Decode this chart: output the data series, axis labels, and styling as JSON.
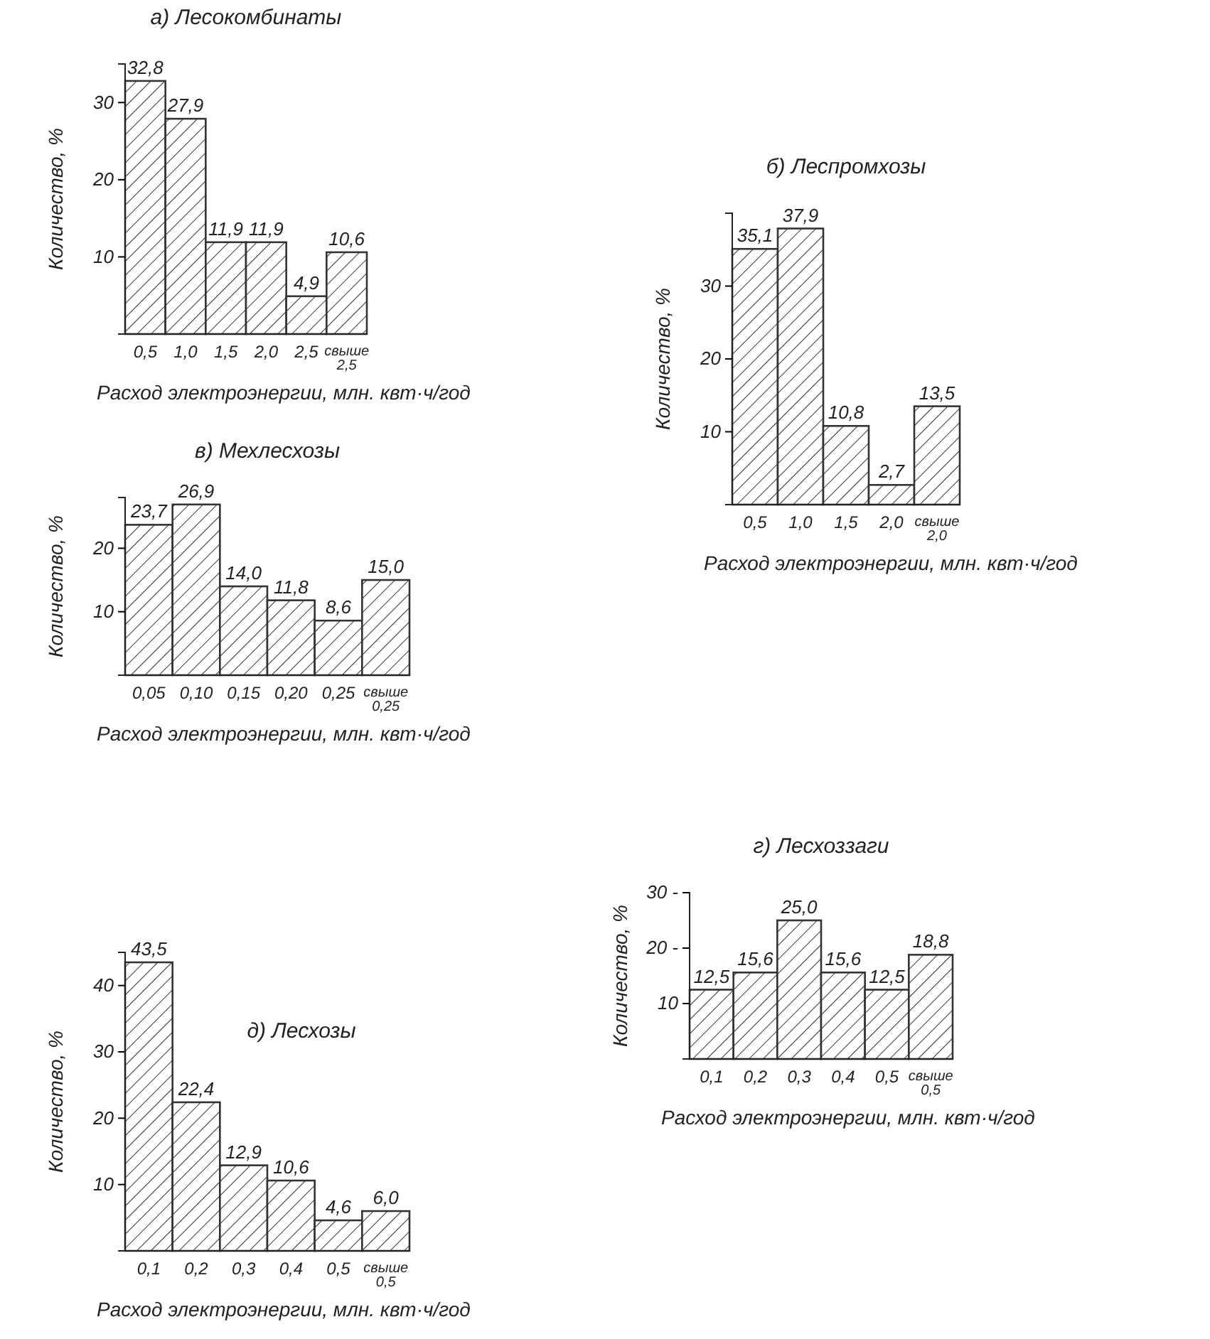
{
  "chart_data": [
    {
      "type": "bar",
      "title": "а) Лесокомбинаты",
      "xlabel": "Расход электроэнергии, млн. квт·ч/год",
      "ylabel": "Количество, %",
      "categories": [
        "0,5",
        "1,0",
        "1,5",
        "2,0",
        "2,5",
        "свыше 2,5"
      ],
      "values": [
        32.8,
        27.9,
        11.9,
        11.9,
        4.9,
        10.6
      ],
      "color": "#333333",
      "value_labels": [
        "32,8",
        "27,9",
        "11,9",
        "11,9",
        "4,9",
        "10,6"
      ],
      "ylim": [
        0,
        35
      ],
      "yticks": [
        10,
        20,
        30
      ]
    },
    {
      "type": "bar",
      "title": "б) Леспромхозы",
      "xlabel": "Расход электроэнергии, млн. квт·ч/год",
      "ylabel": "Количество, %",
      "categories": [
        "0,5",
        "1,0",
        "1,5",
        "2,0",
        "свыше 2,0"
      ],
      "values": [
        35.1,
        37.9,
        10.8,
        2.7,
        13.5
      ],
      "color": "#333333",
      "value_labels": [
        "35,1",
        "37,9",
        "10,8",
        "2,7",
        "13,5"
      ],
      "ylim": [
        0,
        40
      ],
      "yticks": [
        10,
        20,
        30
      ]
    },
    {
      "type": "bar",
      "title": "в) Мехлесхозы",
      "xlabel": "Расход электроэнергии, млн. квт·ч/год",
      "ylabel": "Количество, %",
      "categories": [
        "0,05",
        "0,10",
        "0,15",
        "0,20",
        "0,25",
        "свыше 0,25"
      ],
      "values": [
        23.7,
        26.9,
        14.0,
        11.8,
        8.6,
        15.0
      ],
      "color": "#333333",
      "value_labels": [
        "23,7",
        "26,9",
        "14,0",
        "11,8",
        "8,6",
        "15,0"
      ],
      "ylim": [
        0,
        28
      ],
      "yticks": [
        10,
        20
      ]
    },
    {
      "type": "bar",
      "title": "г) Лесхоззаги",
      "xlabel": "Расход электроэнергии, млн. квт·ч/год",
      "ylabel": "Количество, %",
      "categories": [
        "0,1",
        "0,2",
        "0,3",
        "0,4",
        "0,5",
        "свыше 0,5"
      ],
      "values": [
        12.5,
        15.6,
        25.0,
        15.6,
        12.5,
        18.8
      ],
      "color": "#333333",
      "value_labels": [
        "12,5",
        "15,6",
        "25,0",
        "15,6",
        "12,5",
        "18,8"
      ],
      "ylim": [
        0,
        30
      ],
      "yticks": [
        10,
        {
          "value": 20,
          "label": "20 -"
        },
        {
          "value": 30,
          "label": "30 -"
        }
      ]
    },
    {
      "type": "bar",
      "title": "д) Лесхозы",
      "xlabel": "Расход электроэнергии, млн. квт·ч/год",
      "ylabel": "Количество, %",
      "categories": [
        "0,1",
        "0,2",
        "0,3",
        "0,4",
        "0,5",
        "свыше 0,5"
      ],
      "values": [
        43.5,
        22.4,
        12.9,
        10.6,
        4.6,
        6.0
      ],
      "color": "#333333",
      "value_labels": [
        "43,5",
        "22,4",
        "12,9",
        "10,6",
        "4,6",
        "6,0"
      ],
      "ylim": [
        0,
        45
      ],
      "yticks": [
        10,
        20,
        30,
        40
      ]
    }
  ]
}
